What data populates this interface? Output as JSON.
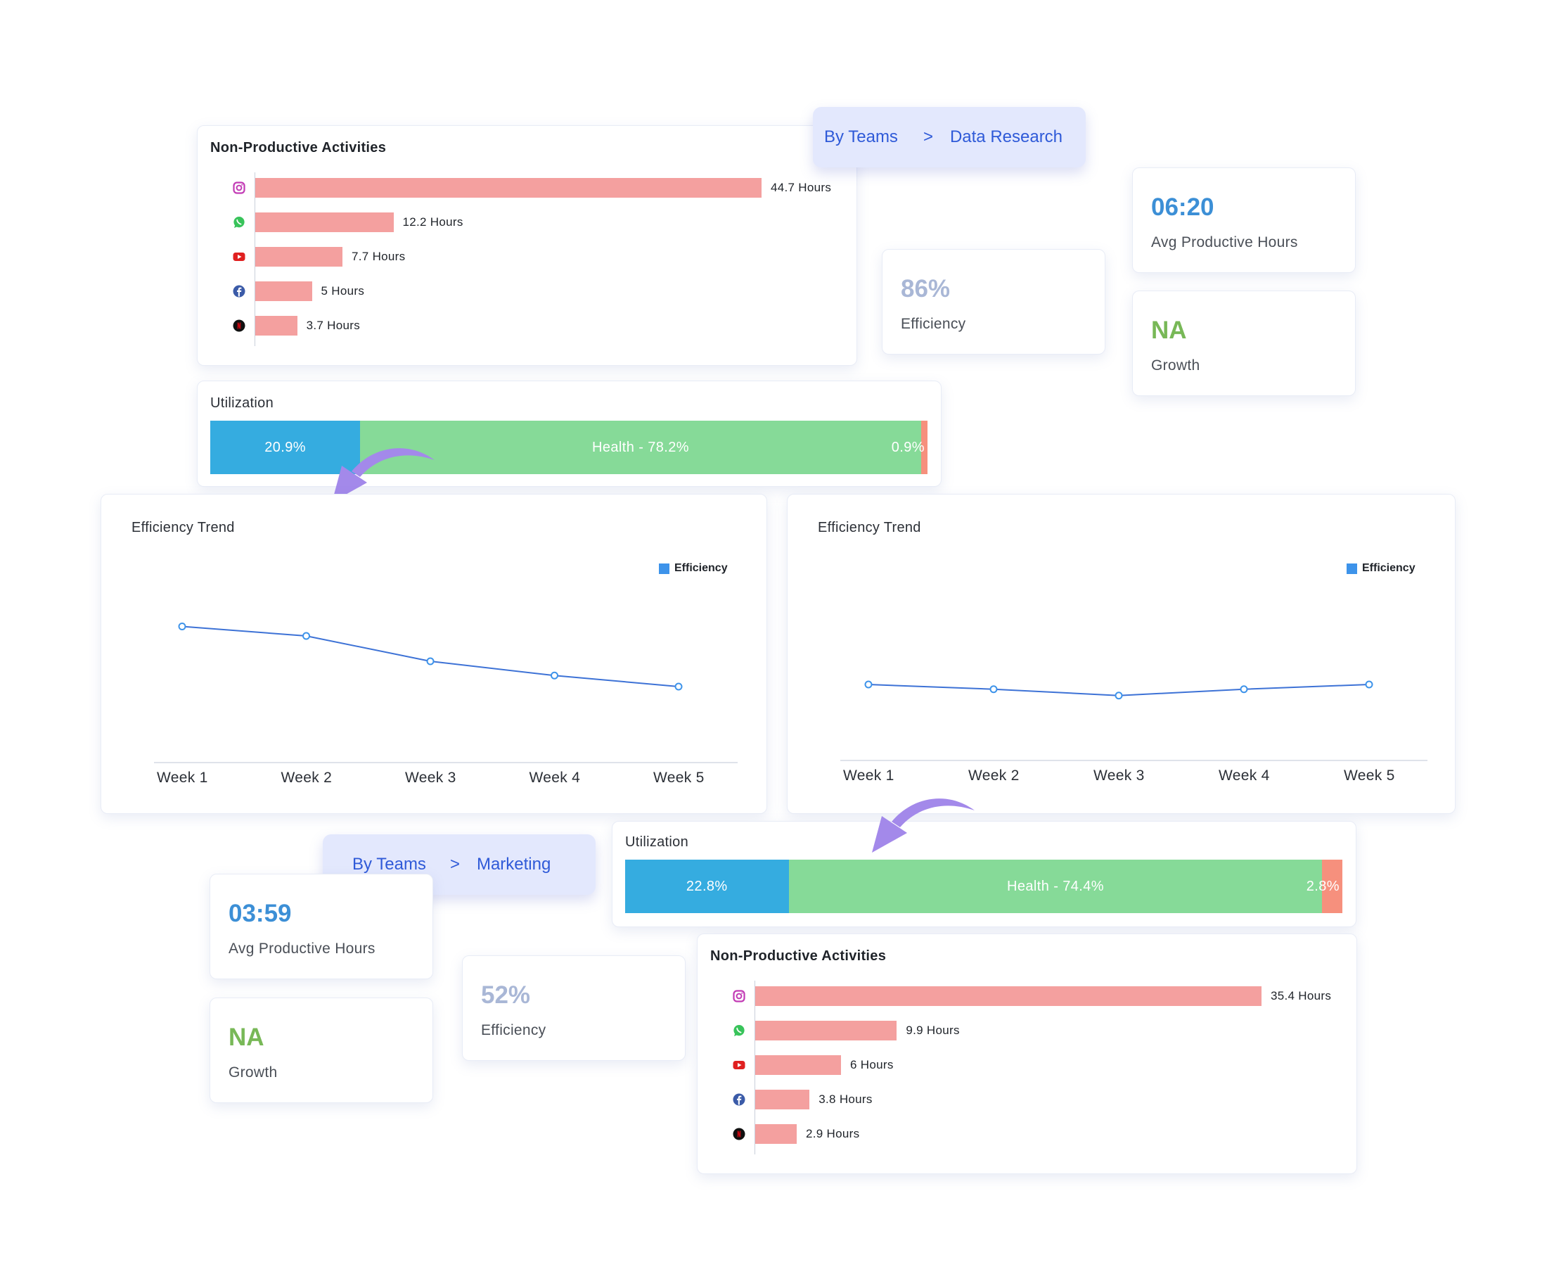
{
  "top": {
    "breadcrumb": {
      "root": "By Teams",
      "separator": ">",
      "current": "Data Research"
    },
    "npa": {
      "title": "Non-Productive Activities",
      "items": [
        {
          "icon": "instagram-icon",
          "value": 44.7,
          "label": "44.7 Hours"
        },
        {
          "icon": "whatsapp-icon",
          "value": 12.2,
          "label": "12.2 Hours"
        },
        {
          "icon": "youtube-icon",
          "value": 7.7,
          "label": "7.7 Hours"
        },
        {
          "icon": "facebook-icon",
          "value": 5,
          "label": "5 Hours"
        },
        {
          "icon": "netflix-icon",
          "value": 3.7,
          "label": "3.7 Hours"
        }
      ]
    },
    "efficiency": {
      "value": "86%",
      "label": "Efficiency"
    },
    "avg_hours": {
      "value": "06:20",
      "label": "Avg Productive Hours"
    },
    "growth": {
      "value": "NA",
      "label": "Growth"
    },
    "utilization": {
      "title": "Utilization",
      "segments": [
        {
          "percent": 20.9,
          "label": "20.9%",
          "color": "#35ace0"
        },
        {
          "percent": 78.2,
          "label": "Health - 78.2%",
          "color": "#86da98"
        },
        {
          "percent": 0.9,
          "label": "0.9%",
          "color": "#f6907d"
        }
      ]
    }
  },
  "trend_left": {
    "title": "Efficiency Trend",
    "legend": "Efficiency",
    "chart_data": {
      "type": "line",
      "categories": [
        "Week 1",
        "Week 2",
        "Week 3",
        "Week 4",
        "Week 5"
      ],
      "series": [
        {
          "name": "Efficiency",
          "values": [
            86,
            80,
            64,
            55,
            48
          ]
        }
      ],
      "ylim": [
        0,
        160
      ],
      "grid": false,
      "legend": "top-right",
      "color": "#3d72d6"
    }
  },
  "trend_right": {
    "title": "Efficiency Trend",
    "legend": "Efficiency",
    "chart_data": {
      "type": "line",
      "categories": [
        "Week 1",
        "Week 2",
        "Week 3",
        "Week 4",
        "Week 5"
      ],
      "series": [
        {
          "name": "Efficiency",
          "values": [
            48,
            45,
            41,
            45,
            48
          ]
        }
      ],
      "ylim": [
        0,
        160
      ],
      "grid": false,
      "legend": "top-right",
      "color": "#3d72d6"
    }
  },
  "bottom": {
    "breadcrumb": {
      "root": "By Teams",
      "separator": ">",
      "current": "Marketing"
    },
    "avg_hours": {
      "value": "03:59",
      "label": "Avg Productive Hours"
    },
    "growth": {
      "value": "NA",
      "label": "Growth"
    },
    "efficiency": {
      "value": "52%",
      "label": "Efficiency"
    },
    "utilization": {
      "title": "Utilization",
      "segments": [
        {
          "percent": 22.8,
          "label": "22.8%",
          "color": "#35ace0"
        },
        {
          "percent": 74.4,
          "label": "Health - 74.4%",
          "color": "#86da98"
        },
        {
          "percent": 2.8,
          "label": "2.8%",
          "color": "#f6907d"
        }
      ]
    },
    "npa": {
      "title": "Non-Productive Activities",
      "items": [
        {
          "icon": "instagram-icon",
          "value": 35.4,
          "label": "35.4 Hours"
        },
        {
          "icon": "whatsapp-icon",
          "value": 9.9,
          "label": "9.9 Hours"
        },
        {
          "icon": "youtube-icon",
          "value": 6,
          "label": "6 Hours"
        },
        {
          "icon": "facebook-icon",
          "value": 3.8,
          "label": "3.8 Hours"
        },
        {
          "icon": "netflix-icon",
          "value": 2.9,
          "label": "2.9 Hours"
        }
      ]
    }
  },
  "colors": {
    "accent": "#2f5ad8",
    "bar": "#f4a09f",
    "arrow": "#a389ea"
  }
}
